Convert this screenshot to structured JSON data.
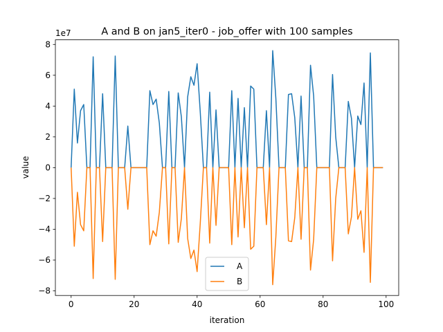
{
  "chart_data": {
    "type": "line",
    "title": "A and B on jan5_iter0 - job_offer with 100 samples",
    "xlabel": "iteration",
    "ylabel": "value",
    "xlim": [
      -5,
      104
    ],
    "ylim": [
      -8.3,
      8.3
    ],
    "y_offset_label": "1e7",
    "x_ticks": [
      0,
      20,
      40,
      60,
      80,
      100
    ],
    "y_ticks": [
      -8,
      -6,
      -4,
      -2,
      0,
      2,
      4,
      6,
      8
    ],
    "legend": {
      "position": "lower center",
      "entries": [
        "A",
        "B"
      ]
    },
    "series": [
      {
        "name": "A",
        "color": "#1f77b4",
        "values": [
          0,
          5.1,
          1.6,
          3.7,
          4.1,
          0,
          0,
          7.2,
          0,
          0,
          4.8,
          0,
          0,
          0,
          7.25,
          0,
          0,
          0,
          2.7,
          0,
          0,
          0,
          0,
          0,
          0,
          5.0,
          4.1,
          4.45,
          2.9,
          0,
          0,
          4.95,
          0,
          0,
          4.85,
          3.3,
          0,
          4.6,
          5.9,
          5.35,
          6.75,
          3.6,
          0,
          0,
          4.9,
          0,
          3.75,
          0,
          0,
          0,
          0,
          5.0,
          0,
          4.5,
          0,
          3.9,
          0,
          5.3,
          5.1,
          0,
          0,
          0,
          3.7,
          0,
          7.6,
          4.5,
          0,
          0,
          0,
          4.75,
          4.8,
          3.25,
          0,
          4.65,
          0,
          0,
          6.65,
          4.65,
          0,
          0,
          0,
          0,
          0,
          6.05,
          2.0,
          0,
          0,
          0,
          4.3,
          3.2,
          0,
          3.35,
          2.8,
          5.5,
          0,
          7.45,
          0,
          0,
          0,
          0
        ]
      },
      {
        "name": "B",
        "color": "#ff7f0e",
        "values": [
          0,
          -5.1,
          -1.6,
          -3.7,
          -4.1,
          0,
          0,
          -7.2,
          0,
          0,
          -4.8,
          0,
          0,
          0,
          -7.25,
          0,
          0,
          0,
          -2.7,
          0,
          0,
          0,
          0,
          0,
          0,
          -5.0,
          -4.1,
          -4.45,
          -2.9,
          0,
          0,
          -4.95,
          0,
          0,
          -4.85,
          -3.3,
          0,
          -4.6,
          -5.9,
          -5.35,
          -6.75,
          -3.6,
          0,
          0,
          -4.9,
          0,
          -3.75,
          0,
          0,
          0,
          0,
          -5.0,
          0,
          -4.5,
          0,
          -3.9,
          0,
          -5.3,
          -5.1,
          0,
          0,
          0,
          -3.7,
          0,
          -7.6,
          -4.5,
          0,
          0,
          0,
          -4.75,
          -4.8,
          -3.25,
          0,
          -4.65,
          0,
          0,
          -6.65,
          -4.65,
          0,
          0,
          0,
          0,
          0,
          -6.05,
          -2.0,
          0,
          0,
          0,
          -4.3,
          -3.2,
          0,
          -3.35,
          -2.8,
          -5.5,
          0,
          -7.45,
          0,
          0,
          0,
          0
        ]
      }
    ]
  }
}
